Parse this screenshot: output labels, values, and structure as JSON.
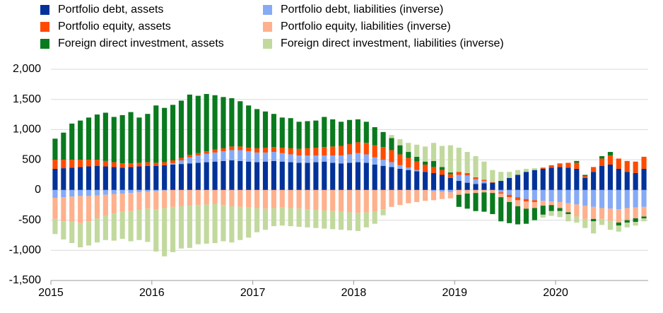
{
  "chart_data": {
    "type": "stacked_bar",
    "categories": [
      "2015",
      null,
      null,
      null,
      null,
      null,
      null,
      null,
      null,
      null,
      null,
      null,
      "2016",
      null,
      null,
      null,
      null,
      null,
      null,
      null,
      null,
      null,
      null,
      null,
      "2017",
      null,
      null,
      null,
      null,
      null,
      null,
      null,
      null,
      null,
      null,
      null,
      "2018",
      null,
      null,
      null,
      null,
      null,
      null,
      null,
      null,
      null,
      null,
      null,
      "2019",
      null,
      null,
      null,
      null,
      null,
      null,
      null,
      null,
      null,
      null,
      null,
      "2020",
      null,
      null,
      null,
      null,
      null,
      null,
      null,
      null,
      null,
      null
    ],
    "series": [
      {
        "name": "Portfolio debt, assets",
        "color": "#003299",
        "values": [
          350,
          360,
          370,
          380,
          390,
          400,
          390,
          380,
          370,
          380,
          390,
          400,
          400,
          410,
          420,
          430,
          440,
          450,
          460,
          470,
          480,
          490,
          480,
          470,
          460,
          470,
          480,
          470,
          460,
          450,
          450,
          460,
          470,
          450,
          440,
          450,
          460,
          450,
          420,
          400,
          380,
          350,
          330,
          310,
          300,
          280,
          250,
          200,
          150,
          120,
          100,
          110,
          120,
          150,
          200,
          250,
          300,
          330,
          350,
          370,
          380,
          370,
          350,
          200,
          300,
          400,
          420,
          350,
          300,
          280,
          350
        ]
      },
      {
        "name": "Portfolio debt, liabilities (inverse)",
        "color": "#86aaf5",
        "values": [
          -130,
          -120,
          -110,
          -100,
          -100,
          -90,
          -80,
          -70,
          -60,
          -50,
          -40,
          -30,
          -20,
          -10,
          20,
          60,
          100,
          120,
          140,
          150,
          160,
          170,
          180,
          170,
          160,
          150,
          150,
          140,
          130,
          120,
          120,
          110,
          100,
          120,
          130,
          140,
          150,
          140,
          120,
          100,
          80,
          60,
          40,
          20,
          0,
          -20,
          -30,
          -40,
          100,
          120,
          80,
          40,
          0,
          -40,
          -80,
          -120,
          -150,
          -170,
          -180,
          -190,
          -200,
          -220,
          -240,
          -260,
          -280,
          -300,
          -310,
          -320,
          -300,
          -290,
          -280
        ]
      },
      {
        "name": "Portfolio equity, assets",
        "color": "#ff4b00",
        "values": [
          150,
          140,
          130,
          120,
          110,
          100,
          90,
          80,
          70,
          60,
          60,
          60,
          50,
          50,
          50,
          40,
          40,
          40,
          40,
          50,
          50,
          60,
          60,
          60,
          70,
          80,
          80,
          90,
          100,
          110,
          120,
          130,
          140,
          150,
          160,
          170,
          180,
          190,
          200,
          210,
          200,
          180,
          160,
          140,
          120,
          100,
          80,
          60,
          50,
          40,
          30,
          20,
          10,
          -20,
          -40,
          -50,
          -40,
          -30,
          20,
          40,
          60,
          80,
          100,
          30,
          80,
          120,
          150,
          170,
          180,
          190,
          200
        ]
      },
      {
        "name": "Portfolio equity, liabilities (inverse)",
        "color": "#ffb08c",
        "values": [
          -350,
          -400,
          -420,
          -450,
          -420,
          -380,
          -350,
          -320,
          -300,
          -300,
          -290,
          -280,
          -300,
          -290,
          -280,
          -270,
          -260,
          -250,
          -240,
          -230,
          -250,
          -270,
          -280,
          -290,
          -300,
          -310,
          -300,
          -290,
          -300,
          -310,
          -320,
          -330,
          -340,
          -350,
          -360,
          -370,
          -380,
          -370,
          -360,
          -320,
          -280,
          -250,
          -220,
          -200,
          -180,
          -150,
          -120,
          -100,
          -80,
          -60,
          -50,
          -40,
          -50,
          -60,
          -80,
          -100,
          -120,
          -100,
          -80,
          -60,
          -100,
          -150,
          -200,
          -220,
          -200,
          -180,
          -200,
          -220,
          -200,
          -180,
          -160
        ]
      },
      {
        "name": "Foreign direct investment, assets",
        "color": "#0a7a1e",
        "values": [
          350,
          450,
          600,
          650,
          700,
          750,
          800,
          750,
          800,
          850,
          750,
          800,
          950,
          900,
          920,
          950,
          1000,
          950,
          950,
          900,
          850,
          800,
          750,
          700,
          650,
          600,
          550,
          500,
          500,
          450,
          450,
          450,
          500,
          450,
          400,
          400,
          380,
          350,
          300,
          250,
          200,
          150,
          100,
          80,
          50,
          100,
          50,
          30,
          -200,
          -250,
          -300,
          -320,
          -350,
          -400,
          -350,
          -300,
          -250,
          -200,
          -150,
          -100,
          -50,
          -30,
          30,
          20,
          -40,
          40,
          60,
          -50,
          -40,
          -60,
          -30
        ]
      },
      {
        "name": "Foreign direct investment, liabilities (inverse)",
        "color": "#c2d99e",
        "values": [
          -250,
          -300,
          -350,
          -400,
          -400,
          -400,
          -400,
          -450,
          -450,
          -500,
          -500,
          -550,
          -700,
          -800,
          -750,
          -700,
          -700,
          -650,
          -650,
          -650,
          -600,
          -600,
          -550,
          -500,
          -400,
          -350,
          -300,
          -300,
          -300,
          -300,
          -300,
          -300,
          -300,
          -300,
          -300,
          -300,
          -300,
          -250,
          -200,
          -100,
          50,
          100,
          150,
          200,
          250,
          300,
          350,
          450,
          400,
          350,
          350,
          300,
          200,
          150,
          100,
          80,
          50,
          30,
          -50,
          -80,
          -100,
          -120,
          -100,
          -150,
          -200,
          -100,
          -150,
          -100,
          -80,
          -60,
          -50
        ]
      }
    ],
    "ylim": [
      -1500,
      2000
    ],
    "yticks": [
      {
        "value": 2000,
        "label": "2,000"
      },
      {
        "value": 1500,
        "label": "1,500"
      },
      {
        "value": 1000,
        "label": "1,000"
      },
      500,
      0,
      -500,
      {
        "value": -1000,
        "label": "-1,000"
      },
      {
        "value": -1500,
        "label": "-1,500"
      }
    ],
    "grid": true
  }
}
